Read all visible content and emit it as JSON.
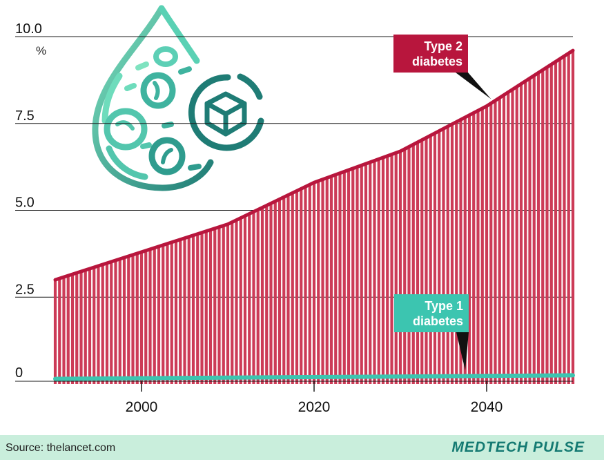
{
  "chart_data": {
    "type": "area",
    "title": "",
    "ylabel": "%",
    "xlabel": "",
    "ylim": [
      0,
      10
    ],
    "xlim": [
      1990,
      2050
    ],
    "yticks": [
      "10.0",
      "7.5",
      "5.0",
      "2.5",
      "0"
    ],
    "ytick_values": [
      10,
      7.5,
      5,
      2.5,
      0
    ],
    "xticks": [
      "2000",
      "2020",
      "2040"
    ],
    "xtick_values": [
      2000,
      2020,
      2040
    ],
    "series": [
      {
        "name": "Type 2 diabetes",
        "color": "#b8163d",
        "fill": "#cc3b57",
        "x": [
          1990,
          2000,
          2010,
          2020,
          2030,
          2040,
          2050
        ],
        "values": [
          3.0,
          3.8,
          4.6,
          5.8,
          6.7,
          8.0,
          9.6
        ]
      },
      {
        "name": "Type 1 diabetes",
        "color": "#3cc5b0",
        "x": [
          1990,
          2050
        ],
        "values": [
          0.15,
          0.25
        ]
      }
    ],
    "annotations": [
      {
        "text_lines": [
          "Type 2",
          "diabetes"
        ],
        "series": "Type 2 diabetes",
        "points_to_x": 2041
      },
      {
        "text_lines": [
          "Type 1",
          "diabetes"
        ],
        "series": "Type 1 diabetes",
        "points_to_x": 2038
      }
    ]
  },
  "icon": "blood-drop-glucose-cube-icon",
  "footer": {
    "source": "Source: thelancet.com",
    "brand": "MEDTECH PULSE"
  }
}
